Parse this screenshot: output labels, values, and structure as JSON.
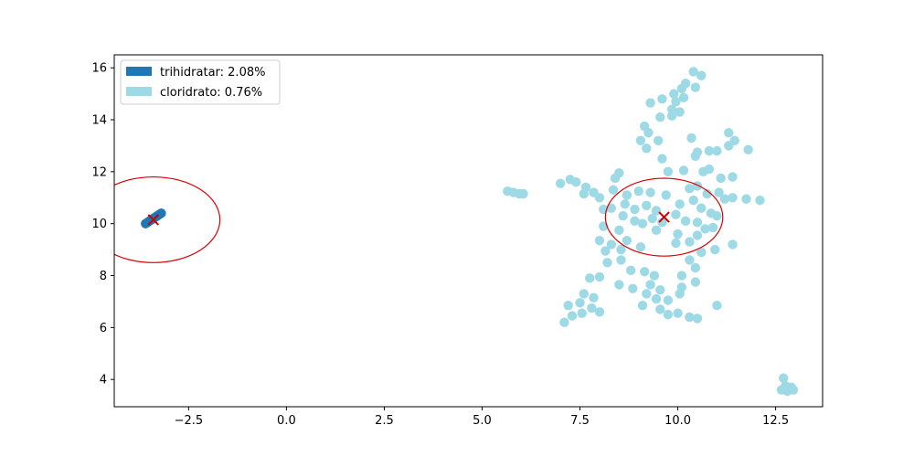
{
  "chart_data": {
    "type": "scatter",
    "xlim": [
      -4.4,
      13.7
    ],
    "ylim": [
      2.95,
      16.5
    ],
    "x_ticks": [
      -2.5,
      0.0,
      2.5,
      5.0,
      7.5,
      10.0,
      12.5
    ],
    "x_tick_labels": [
      "−2.5",
      "0.0",
      "2.5",
      "5.0",
      "7.5",
      "10.0",
      "12.5"
    ],
    "y_ticks": [
      4,
      6,
      8,
      10,
      12,
      14,
      16
    ],
    "y_tick_labels": [
      "4",
      "6",
      "8",
      "10",
      "12",
      "14",
      "16"
    ],
    "grid": false,
    "legend_position": "upper-left",
    "legend": [
      {
        "label": "trihidratar: 2.08%",
        "color": "#1f77b4"
      },
      {
        "label": "cloridrato: 0.76%",
        "color": "#9edae5"
      }
    ],
    "series": [
      {
        "name": "trihidratar: 2.08%",
        "color": "#1f77b4",
        "points": [
          [
            -3.6,
            10.0
          ],
          [
            -3.55,
            10.05
          ],
          [
            -3.5,
            10.1
          ],
          [
            -3.45,
            10.15
          ],
          [
            -3.4,
            10.2
          ],
          [
            -3.35,
            10.25
          ],
          [
            -3.3,
            10.3
          ],
          [
            -3.25,
            10.35
          ],
          [
            -3.2,
            10.4
          ]
        ]
      },
      {
        "name": "cloridrato: 0.76%",
        "color": "#9edae5",
        "points": [
          [
            10.4,
            15.85
          ],
          [
            10.6,
            15.7
          ],
          [
            10.2,
            15.4
          ],
          [
            10.1,
            15.2
          ],
          [
            10.45,
            15.25
          ],
          [
            9.9,
            15.0
          ],
          [
            9.95,
            14.7
          ],
          [
            10.15,
            14.85
          ],
          [
            9.6,
            14.8
          ],
          [
            9.3,
            14.65
          ],
          [
            9.85,
            14.4
          ],
          [
            10.05,
            14.3
          ],
          [
            9.55,
            14.1
          ],
          [
            9.85,
            14.15
          ],
          [
            9.15,
            13.75
          ],
          [
            9.25,
            13.5
          ],
          [
            9.05,
            13.2
          ],
          [
            9.5,
            13.2
          ],
          [
            10.35,
            13.3
          ],
          [
            11.3,
            13.5
          ],
          [
            11.3,
            13.0
          ],
          [
            11.45,
            13.2
          ],
          [
            9.2,
            12.9
          ],
          [
            10.5,
            12.75
          ],
          [
            10.8,
            12.8
          ],
          [
            11.0,
            12.8
          ],
          [
            11.8,
            12.85
          ],
          [
            9.6,
            12.5
          ],
          [
            10.45,
            12.6
          ],
          [
            8.5,
            11.95
          ],
          [
            8.4,
            11.75
          ],
          [
            9.75,
            12.0
          ],
          [
            10.15,
            12.05
          ],
          [
            10.65,
            12.0
          ],
          [
            10.8,
            12.1
          ],
          [
            11.1,
            11.75
          ],
          [
            11.4,
            11.8
          ],
          [
            7.0,
            11.55
          ],
          [
            7.25,
            11.7
          ],
          [
            7.4,
            11.6
          ],
          [
            7.65,
            11.4
          ],
          [
            7.6,
            11.15
          ],
          [
            5.65,
            11.25
          ],
          [
            5.8,
            11.2
          ],
          [
            5.95,
            11.15
          ],
          [
            6.05,
            11.15
          ],
          [
            7.85,
            11.2
          ],
          [
            8.0,
            11.0
          ],
          [
            8.35,
            11.3
          ],
          [
            8.7,
            11.1
          ],
          [
            9.0,
            11.25
          ],
          [
            9.3,
            11.2
          ],
          [
            9.7,
            11.1
          ],
          [
            10.3,
            11.35
          ],
          [
            10.5,
            11.45
          ],
          [
            10.75,
            11.15
          ],
          [
            11.05,
            11.2
          ],
          [
            11.4,
            11.0
          ],
          [
            11.75,
            10.95
          ],
          [
            12.1,
            10.9
          ],
          [
            8.1,
            10.55
          ],
          [
            8.3,
            10.6
          ],
          [
            8.65,
            10.75
          ],
          [
            8.9,
            10.55
          ],
          [
            9.2,
            10.7
          ],
          [
            9.45,
            10.5
          ],
          [
            10.05,
            10.75
          ],
          [
            10.4,
            10.9
          ],
          [
            10.6,
            10.6
          ],
          [
            10.85,
            10.4
          ],
          [
            11.0,
            10.3
          ],
          [
            8.9,
            10.1
          ],
          [
            9.1,
            10.0
          ],
          [
            9.35,
            10.2
          ],
          [
            9.6,
            10.05
          ],
          [
            10.2,
            10.1
          ],
          [
            10.5,
            10.05
          ],
          [
            8.1,
            9.9
          ],
          [
            8.5,
            9.75
          ],
          [
            9.45,
            9.75
          ],
          [
            10.0,
            9.6
          ],
          [
            10.5,
            9.55
          ],
          [
            10.7,
            9.8
          ],
          [
            10.9,
            9.85
          ],
          [
            8.0,
            9.35
          ],
          [
            8.3,
            9.2
          ],
          [
            8.7,
            9.35
          ],
          [
            9.05,
            9.1
          ],
          [
            9.95,
            9.25
          ],
          [
            10.3,
            9.3
          ],
          [
            11.4,
            9.2
          ],
          [
            8.15,
            8.95
          ],
          [
            8.55,
            9.0
          ],
          [
            10.6,
            8.9
          ],
          [
            10.95,
            9.0
          ],
          [
            8.2,
            8.5
          ],
          [
            8.55,
            8.6
          ],
          [
            10.3,
            8.6
          ],
          [
            10.45,
            8.3
          ],
          [
            8.8,
            8.2
          ],
          [
            9.15,
            8.15
          ],
          [
            9.4,
            8.0
          ],
          [
            10.1,
            8.0
          ],
          [
            7.75,
            7.9
          ],
          [
            8.0,
            7.95
          ],
          [
            8.5,
            7.65
          ],
          [
            8.85,
            7.5
          ],
          [
            9.3,
            7.65
          ],
          [
            9.55,
            7.45
          ],
          [
            10.1,
            7.55
          ],
          [
            10.45,
            7.75
          ],
          [
            7.6,
            7.3
          ],
          [
            7.85,
            7.15
          ],
          [
            9.2,
            7.3
          ],
          [
            9.45,
            7.1
          ],
          [
            9.75,
            7.05
          ],
          [
            10.05,
            7.3
          ],
          [
            7.2,
            6.85
          ],
          [
            7.5,
            6.95
          ],
          [
            7.8,
            6.75
          ],
          [
            8.0,
            6.6
          ],
          [
            9.1,
            6.85
          ],
          [
            9.55,
            6.7
          ],
          [
            11.0,
            6.85
          ],
          [
            7.1,
            6.2
          ],
          [
            7.3,
            6.45
          ],
          [
            7.55,
            6.55
          ],
          [
            9.75,
            6.5
          ],
          [
            10.0,
            6.55
          ],
          [
            10.3,
            6.4
          ],
          [
            10.5,
            6.35
          ],
          [
            12.7,
            4.05
          ],
          [
            12.75,
            3.75
          ],
          [
            12.9,
            3.7
          ],
          [
            12.8,
            3.55
          ],
          [
            12.95,
            3.6
          ],
          [
            12.65,
            3.6
          ],
          [
            8.6,
            10.3
          ],
          [
            9.95,
            10.35
          ],
          [
            11.2,
            10.95
          ]
        ]
      }
    ],
    "centroids": [
      {
        "x": -3.4,
        "y": 10.15,
        "rx": 1.7,
        "ry": 1.65
      },
      {
        "x": 9.65,
        "y": 10.25,
        "rx": 1.5,
        "ry": 1.5
      }
    ],
    "centroid_color": "#cc0000",
    "circle_color": "#dd0000"
  }
}
